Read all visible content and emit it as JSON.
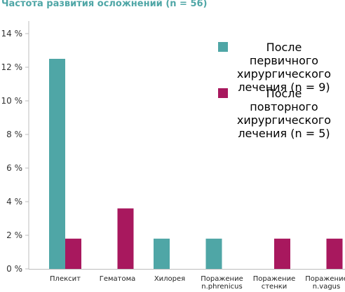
{
  "chart_data": {
    "type": "bar",
    "title": "Частота развития осложнений (n = 56)",
    "categories": [
      "Плексит",
      "Гематома",
      "Хилорея",
      "Поражение\nn.phrenicus",
      "Поражение\nстенки",
      "Поражение\nn.vagus"
    ],
    "series": [
      {
        "name": "После первичного\nхирургического\nлечения (n = 9)",
        "color": "#4fa6a6",
        "values": [
          12.5,
          0,
          1.8,
          1.8,
          0,
          0
        ]
      },
      {
        "name": "После повторного\nхирургического\nлечения (n = 5)",
        "color": "#a8185e",
        "values": [
          1.8,
          3.6,
          0,
          0,
          1.8,
          1.8
        ]
      }
    ],
    "yticks": [
      "0 %",
      "2 %",
      "4 %",
      "6 %",
      "8 %",
      "10 %",
      "12 %",
      "14 %"
    ],
    "ylim": [
      0,
      16
    ],
    "xlabel": "",
    "ylabel": "",
    "legend_position": "top-right",
    "grid": false
  }
}
